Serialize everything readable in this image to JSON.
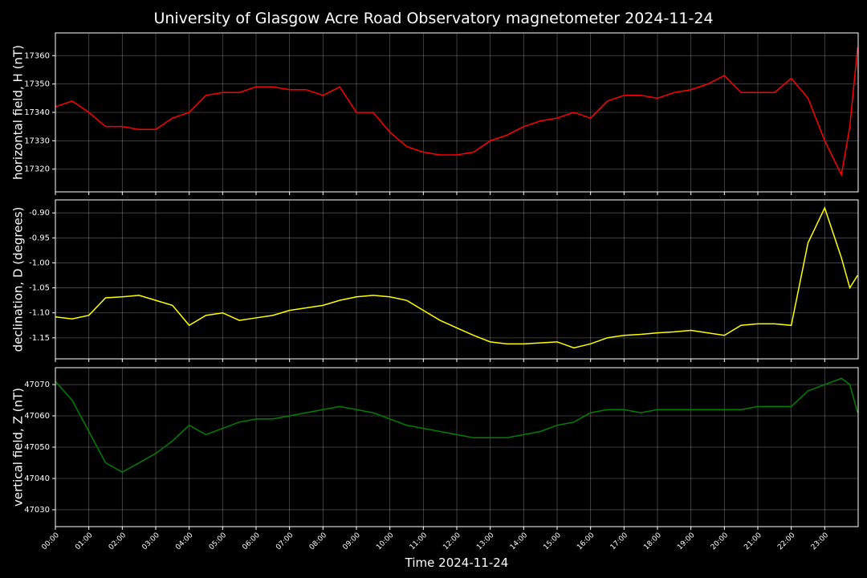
{
  "chart_data": [
    {
      "type": "line",
      "title": "University of Glasgow Acre Road Observatory magnetometer 2024-11-24",
      "ylabel": "horizontal field, H (nT)",
      "x": [
        "00:00",
        "00:30",
        "01:00",
        "01:30",
        "02:00",
        "02:30",
        "03:00",
        "03:30",
        "04:00",
        "04:30",
        "05:00",
        "05:30",
        "06:00",
        "06:30",
        "07:00",
        "07:30",
        "08:00",
        "08:30",
        "09:00",
        "09:30",
        "10:00",
        "10:30",
        "11:00",
        "11:30",
        "12:00",
        "12:30",
        "13:00",
        "13:30",
        "14:00",
        "14:30",
        "15:00",
        "15:30",
        "16:00",
        "16:30",
        "17:00",
        "17:30",
        "18:00",
        "18:30",
        "19:00",
        "19:30",
        "20:00",
        "20:30",
        "21:00",
        "21:30",
        "22:00",
        "22:30",
        "23:00",
        "23:30",
        "23:45",
        "23:59"
      ],
      "series": [
        {
          "color": "#ff0000",
          "values": [
            17342,
            17344,
            17340,
            17335,
            17335,
            17334,
            17334,
            17338,
            17340,
            17346,
            17347,
            17347,
            17349,
            17349,
            17348,
            17348,
            17346,
            17349,
            17340,
            17340,
            17333,
            17328,
            17326,
            17325,
            17325,
            17326,
            17330,
            17332,
            17335,
            17337,
            17338,
            17340,
            17338,
            17344,
            17346,
            17346,
            17345,
            17347,
            17348,
            17350,
            17353,
            17347,
            17347,
            17347,
            17352,
            17345,
            17330,
            17318,
            17335,
            17363
          ]
        }
      ],
      "xlim": [
        "00:00",
        "24:00"
      ],
      "ylim": [
        17312,
        17368
      ],
      "yticks": [
        17320,
        17330,
        17340,
        17350,
        17360
      ],
      "grid": true
    },
    {
      "type": "line",
      "ylabel": "declination, D (degrees)",
      "x": [
        "00:00",
        "00:30",
        "01:00",
        "01:30",
        "02:00",
        "02:30",
        "03:00",
        "03:30",
        "04:00",
        "04:30",
        "05:00",
        "05:30",
        "06:00",
        "06:30",
        "07:00",
        "07:30",
        "08:00",
        "08:30",
        "09:00",
        "09:30",
        "10:00",
        "10:30",
        "11:00",
        "11:30",
        "12:00",
        "12:30",
        "13:00",
        "13:30",
        "14:00",
        "14:30",
        "15:00",
        "15:30",
        "16:00",
        "16:30",
        "17:00",
        "17:30",
        "18:00",
        "18:30",
        "19:00",
        "19:30",
        "20:00",
        "20:30",
        "21:00",
        "21:30",
        "22:00",
        "22:30",
        "23:00",
        "23:30",
        "23:45",
        "23:59"
      ],
      "series": [
        {
          "color": "#ffff00",
          "values": [
            -1.108,
            -1.112,
            -1.105,
            -1.07,
            -1.068,
            -1.065,
            -1.075,
            -1.085,
            -1.125,
            -1.105,
            -1.1,
            -1.115,
            -1.11,
            -1.105,
            -1.095,
            -1.09,
            -1.085,
            -1.075,
            -1.068,
            -1.065,
            -1.068,
            -1.075,
            -1.095,
            -1.115,
            -1.13,
            -1.145,
            -1.158,
            -1.162,
            -1.162,
            -1.16,
            -1.158,
            -1.17,
            -1.162,
            -1.15,
            -1.145,
            -1.143,
            -1.14,
            -1.138,
            -1.135,
            -1.14,
            -1.145,
            -1.125,
            -1.122,
            -1.122,
            -1.125,
            -0.96,
            -0.89,
            -0.99,
            -1.05,
            -1.025
          ]
        }
      ],
      "xlim": [
        "00:00",
        "24:00"
      ],
      "ylim": [
        -1.192,
        -0.874
      ],
      "yticks": [
        {
          "value": -1.15,
          "label": "-1.15"
        },
        {
          "value": -1.1,
          "label": "-1.10"
        },
        {
          "value": -1.05,
          "label": "-1.05"
        },
        {
          "value": -1.0,
          "label": "-1.00"
        },
        {
          "value": -0.95,
          "label": "-0.95"
        },
        {
          "value": -0.9,
          "label": "-0.90"
        }
      ],
      "grid": true
    },
    {
      "type": "line",
      "ylabel": "vertical field, Z (nT)",
      "xlabel": "Time 2024-11-24",
      "x": [
        "00:00",
        "00:30",
        "01:00",
        "01:30",
        "02:00",
        "02:30",
        "03:00",
        "03:30",
        "04:00",
        "04:30",
        "05:00",
        "05:30",
        "06:00",
        "06:30",
        "07:00",
        "07:30",
        "08:00",
        "08:30",
        "09:00",
        "09:30",
        "10:00",
        "10:30",
        "11:00",
        "11:30",
        "12:00",
        "12:30",
        "13:00",
        "13:30",
        "14:00",
        "14:30",
        "15:00",
        "15:30",
        "16:00",
        "16:30",
        "17:00",
        "17:30",
        "18:00",
        "18:30",
        "19:00",
        "19:30",
        "20:00",
        "20:30",
        "21:00",
        "21:30",
        "22:00",
        "22:30",
        "23:00",
        "23:30",
        "23:45",
        "23:59"
      ],
      "series": [
        {
          "color": "#008000",
          "values": [
            47071,
            47065,
            47055,
            47045,
            47042,
            47045,
            47048,
            47052,
            47057,
            47054,
            47056,
            47058,
            47059,
            47059,
            47060,
            47061,
            47062,
            47063,
            47062,
            47061,
            47059,
            47057,
            47056,
            47055,
            47054,
            47053,
            47053,
            47053,
            47054,
            47055,
            47057,
            47058,
            47061,
            47062,
            47062,
            47061,
            47062,
            47062,
            47062,
            47062,
            47062,
            47062,
            47063,
            47063,
            47063,
            47068,
            47070,
            47072,
            47070,
            47061
          ]
        }
      ],
      "xlim": [
        "00:00",
        "24:00"
      ],
      "ylim": [
        47024.6,
        47075.4
      ],
      "yticks": [
        47030,
        47040,
        47050,
        47060,
        47070
      ],
      "xticks": [
        "00:00",
        "01:00",
        "02:00",
        "03:00",
        "04:00",
        "05:00",
        "06:00",
        "07:00",
        "08:00",
        "09:00",
        "10:00",
        "11:00",
        "12:00",
        "13:00",
        "14:00",
        "15:00",
        "16:00",
        "17:00",
        "18:00",
        "19:00",
        "20:00",
        "21:00",
        "22:00",
        "23:00"
      ],
      "grid": true
    }
  ]
}
